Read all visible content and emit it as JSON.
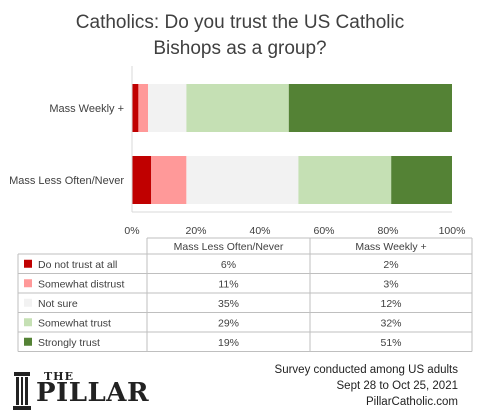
{
  "chart_data": {
    "type": "bar",
    "stacked": true,
    "orientation": "horizontal",
    "title": "Catholics: Do you trust the US Catholic Bishops  as a group?",
    "title_lines": [
      "Catholics: Do you trust the US Catholic",
      "Bishops  as a group?"
    ],
    "categories": [
      "Mass Weekly +",
      "Mass Less Often/Never"
    ],
    "xlim": [
      0,
      100
    ],
    "x_ticks": [
      "0%",
      "20%",
      "40%",
      "60%",
      "80%",
      "100%"
    ],
    "grid": false,
    "legend": "table-below",
    "series": [
      {
        "name": "Do not trust at all",
        "color": "#c00000",
        "values": [
          2,
          6
        ],
        "labels": [
          "2%",
          "6%"
        ]
      },
      {
        "name": "Somewhat distrust",
        "color": "#ff9999",
        "values": [
          3,
          11
        ],
        "labels": [
          "3%",
          "11%"
        ]
      },
      {
        "name": "Not sure",
        "color": "#f2f2f2",
        "values": [
          12,
          35
        ],
        "labels": [
          "12%",
          "35%"
        ]
      },
      {
        "name": "Somewhat trust",
        "color": "#c5e0b4",
        "values": [
          32,
          29
        ],
        "labels": [
          "32%",
          "29%"
        ]
      },
      {
        "name": "Strongly trust",
        "color": "#548235",
        "values": [
          51,
          19
        ],
        "labels": [
          "51%",
          "19%"
        ]
      }
    ],
    "table_columns": [
      "Mass Less Often/Never",
      "Mass Weekly +"
    ]
  },
  "footer": {
    "lines": [
      "Survey conducted among US adults",
      "Sept 28 to Oct 25, 2021",
      "PillarCatholic.com"
    ]
  },
  "logo": {
    "the": "THE",
    "name": "PILLAR"
  }
}
